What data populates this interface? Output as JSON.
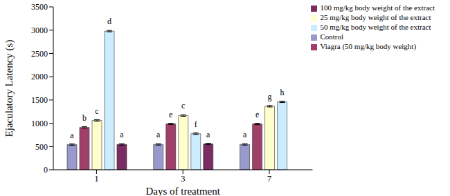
{
  "chart_data": {
    "type": "bar",
    "x_label": "Days of treatment",
    "y_label": "Ejaculatory Latency (s)",
    "categories": [
      "1",
      "3",
      "7"
    ],
    "ylim": [
      0,
      3500
    ],
    "yticks": [
      0,
      500,
      1000,
      1500,
      2000,
      2500,
      3000,
      3500
    ],
    "grid": false,
    "legend": "upper right",
    "series": [
      {
        "name": "Control",
        "color": "#9999cc",
        "values": [
          540,
          545,
          545
        ],
        "errors": [
          15,
          15,
          15
        ],
        "letters": [
          "a",
          "a",
          "a"
        ]
      },
      {
        "name": "Viagra (50 mg/kg body weight)",
        "color": "#a0406a",
        "values": [
          910,
          985,
          985
        ],
        "errors": [
          15,
          15,
          15
        ],
        "letters": [
          "b",
          "e",
          "e"
        ]
      },
      {
        "name": "25 mg/kg body weight of the extract",
        "color": "#ffffcc",
        "values": [
          1060,
          1165,
          1365
        ],
        "errors": [
          15,
          15,
          15
        ],
        "letters": [
          "c",
          "c",
          "g"
        ]
      },
      {
        "name": "50 mg/kg body weight of the extract",
        "color": "#ccecff",
        "values": [
          2980,
          775,
          1460
        ],
        "errors": [
          15,
          15,
          15
        ],
        "letters": [
          "d",
          "f",
          "h"
        ]
      },
      {
        "name": "100 mg/kg body weight of the extract",
        "color": "#7b2c62",
        "values": [
          545,
          555,
          null
        ],
        "errors": [
          15,
          15,
          null
        ],
        "letters": [
          "a",
          "a",
          null
        ]
      }
    ]
  }
}
